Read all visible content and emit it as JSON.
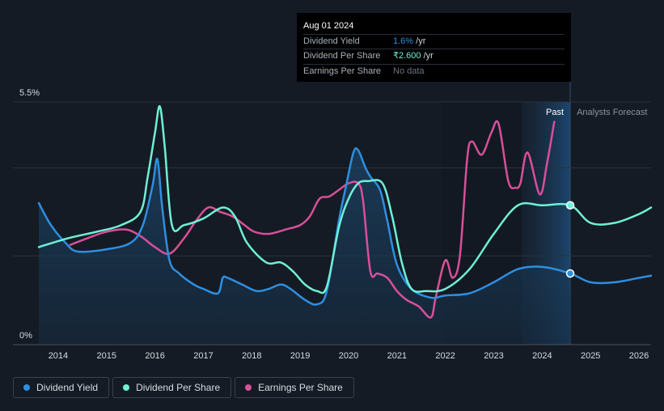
{
  "tooltip": {
    "date": "Aug 01 2024",
    "rows": [
      {
        "label": "Dividend Yield",
        "value": "1.6%",
        "unit": " /yr",
        "color": "#2e8fe0"
      },
      {
        "label": "Dividend Per Share",
        "value": "₹2.600",
        "unit": " /yr",
        "color": "#6ff0d6"
      },
      {
        "label": "Earnings Per Share",
        "value": "No data",
        "unit": "",
        "color": "#6c7480"
      }
    ]
  },
  "labels": {
    "past": "Past",
    "forecast": "Analysts Forecast"
  },
  "legend": [
    {
      "label": "Dividend Yield",
      "color": "#2e8fe0"
    },
    {
      "label": "Dividend Per Share",
      "color": "#6ff0d6"
    },
    {
      "label": "Earnings Per Share",
      "color": "#d94f9a"
    }
  ],
  "chart_data": {
    "type": "line",
    "title": "",
    "xlabel": "",
    "ylabel": "",
    "xlim": [
      2013.6,
      2026.25
    ],
    "ylim": [
      0,
      5.5
    ],
    "y_tick_labels": [
      "0%",
      "5.5%"
    ],
    "x_ticks": [
      "2014",
      "2015",
      "2016",
      "2017",
      "2018",
      "2019",
      "2020",
      "2021",
      "2022",
      "2023",
      "2024",
      "2025",
      "2026"
    ],
    "past_region_start": 2023.57,
    "now": 2024.58,
    "series": [
      {
        "name": "Dividend Yield",
        "color": "#2e8fe0",
        "x": [
          2013.6,
          2013.85,
          2014.15,
          2014.4,
          2015.0,
          2015.5,
          2015.75,
          2015.95,
          2016.05,
          2016.15,
          2016.3,
          2016.5,
          2016.8,
          2017.0,
          2017.3,
          2017.4,
          2017.5,
          2017.8,
          2018.1,
          2018.35,
          2018.6,
          2018.8,
          2019.1,
          2019.35,
          2019.55,
          2019.8,
          2019.95,
          2020.1,
          2020.2,
          2020.35,
          2020.45,
          2020.65,
          2020.8,
          2021.0,
          2021.3,
          2021.7,
          2022.0,
          2022.5,
          2023.0,
          2023.5,
          2024.0,
          2024.58,
          2025.0,
          2025.5,
          2026.0,
          2026.25
        ],
        "y": [
          3.2,
          2.7,
          2.3,
          2.1,
          2.15,
          2.3,
          2.7,
          3.6,
          4.2,
          3.1,
          1.9,
          1.6,
          1.35,
          1.25,
          1.15,
          1.5,
          1.5,
          1.35,
          1.2,
          1.25,
          1.35,
          1.25,
          1.0,
          0.9,
          1.2,
          2.8,
          3.6,
          4.35,
          4.4,
          4.0,
          3.8,
          3.5,
          2.8,
          1.8,
          1.25,
          1.05,
          1.1,
          1.15,
          1.4,
          1.7,
          1.75,
          1.6,
          1.4,
          1.4,
          1.5,
          1.55
        ]
      },
      {
        "name": "Dividend Per Share",
        "color": "#6ff0d6",
        "x": [
          2013.6,
          2014.2,
          2014.8,
          2015.3,
          2015.7,
          2015.85,
          2016.0,
          2016.1,
          2016.2,
          2016.35,
          2016.6,
          2017.0,
          2017.4,
          2017.65,
          2017.9,
          2018.3,
          2018.6,
          2018.85,
          2019.1,
          2019.35,
          2019.55,
          2019.8,
          2020.0,
          2020.2,
          2020.4,
          2020.7,
          2020.9,
          2021.1,
          2021.3,
          2021.6,
          2022.0,
          2022.5,
          2023.0,
          2023.5,
          2024.0,
          2024.58,
          2025.0,
          2025.5,
          2026.0,
          2026.25
        ],
        "y": [
          2.2,
          2.4,
          2.55,
          2.7,
          3.0,
          3.8,
          4.8,
          5.4,
          4.5,
          2.7,
          2.7,
          2.85,
          3.1,
          2.9,
          2.3,
          1.85,
          1.85,
          1.65,
          1.35,
          1.2,
          1.3,
          2.65,
          3.3,
          3.65,
          3.7,
          3.65,
          2.9,
          1.85,
          1.25,
          1.2,
          1.25,
          1.7,
          2.5,
          3.15,
          3.15,
          3.15,
          2.75,
          2.75,
          2.95,
          3.1
        ]
      },
      {
        "name": "Earnings Per Share",
        "color": "#d94f9a",
        "x": [
          2014.25,
          2014.6,
          2015.0,
          2015.4,
          2015.7,
          2016.0,
          2016.3,
          2016.6,
          2016.85,
          2017.1,
          2017.35,
          2017.6,
          2017.85,
          2018.05,
          2018.35,
          2018.7,
          2019.0,
          2019.2,
          2019.4,
          2019.6,
          2019.8,
          2020.0,
          2020.2,
          2020.3,
          2020.45,
          2020.6,
          2020.8,
          2021.0,
          2021.2,
          2021.45,
          2021.7,
          2021.8,
          2022.0,
          2022.15,
          2022.3,
          2022.45,
          2022.55,
          2022.75,
          2022.95,
          2023.1,
          2023.3,
          2023.45,
          2023.55,
          2023.7,
          2023.95,
          2024.1,
          2024.25
        ],
        "y": [
          2.25,
          2.4,
          2.55,
          2.6,
          2.45,
          2.2,
          2.05,
          2.4,
          2.8,
          3.1,
          3.0,
          2.9,
          2.7,
          2.55,
          2.5,
          2.6,
          2.7,
          2.9,
          3.3,
          3.35,
          3.5,
          3.65,
          3.65,
          3.25,
          1.65,
          1.6,
          1.5,
          1.2,
          1.0,
          0.85,
          0.6,
          1.05,
          1.9,
          1.5,
          2.0,
          4.2,
          4.6,
          4.3,
          4.8,
          5.0,
          3.7,
          3.55,
          3.65,
          4.35,
          3.4,
          4.1,
          5.05
        ]
      }
    ],
    "markers": [
      {
        "series": "Dividend Per Share",
        "x": 2024.58,
        "y": 3.15
      },
      {
        "series": "Dividend Yield",
        "x": 2024.58,
        "y": 1.6
      }
    ]
  }
}
